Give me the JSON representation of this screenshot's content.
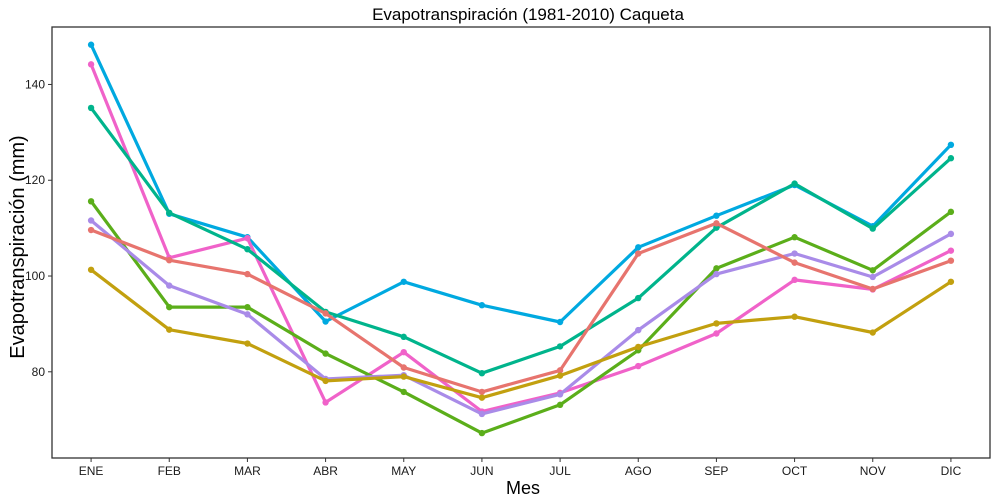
{
  "chart_data": {
    "type": "line",
    "title": "Evapotranspiración (1981-2010)  Caqueta",
    "xlabel": "Mes",
    "ylabel": "Evapotranspiración (mm)",
    "categories": [
      "ENE",
      "FEB",
      "MAR",
      "ABR",
      "MAY",
      "JUN",
      "JUL",
      "AGO",
      "SEP",
      "OCT",
      "NOV",
      "DIC"
    ],
    "ylim": [
      62,
      152
    ],
    "yticks": [
      80,
      100,
      120,
      140
    ],
    "grid": false,
    "legend": "none",
    "series": [
      {
        "color": "#00A9E0",
        "values": [
          148.3,
          113.0,
          108.1,
          90.5,
          98.8,
          93.9,
          90.4,
          106.0,
          112.6,
          119.0,
          110.4,
          127.4
        ]
      },
      {
        "color": "#F062C9",
        "values": [
          144.2,
          103.8,
          107.9,
          73.6,
          84.1,
          71.7,
          75.6,
          81.2,
          88.0,
          99.2,
          97.2,
          105.3
        ]
      },
      {
        "color": "#00B48C",
        "values": [
          135.1,
          113.2,
          105.6,
          92.5,
          87.3,
          79.7,
          85.3,
          95.4,
          110.1,
          119.3,
          109.9,
          124.6
        ]
      },
      {
        "color": "#5BAE1A",
        "values": [
          115.6,
          93.5,
          93.5,
          83.8,
          75.8,
          67.2,
          73.1,
          84.5,
          101.6,
          108.1,
          101.2,
          113.4
        ]
      },
      {
        "color": "#A98BE8",
        "values": [
          111.6,
          98.0,
          92.0,
          78.5,
          79.3,
          71.2,
          75.3,
          88.7,
          100.4,
          104.7,
          99.8,
          108.8
        ]
      },
      {
        "color": "#E7746E",
        "values": [
          109.6,
          103.3,
          100.4,
          92.2,
          80.9,
          75.8,
          80.3,
          104.7,
          111.0,
          102.8,
          97.3,
          103.2
        ]
      },
      {
        "color": "#C2A00F",
        "values": [
          101.3,
          88.8,
          85.9,
          78.1,
          79.0,
          74.6,
          79.2,
          85.2,
          90.1,
          91.5,
          88.2,
          98.8
        ]
      }
    ]
  }
}
